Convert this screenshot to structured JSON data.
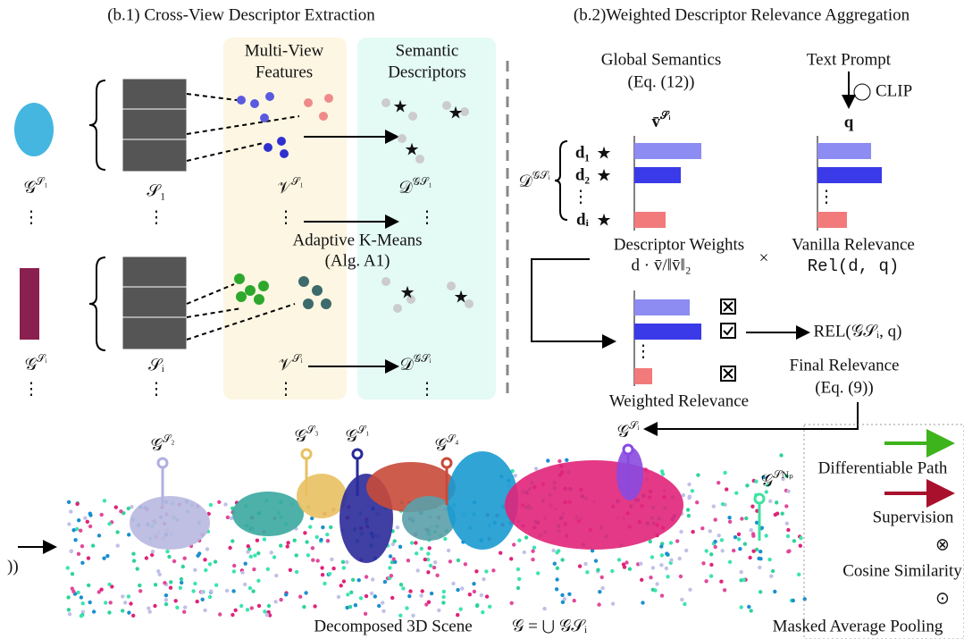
{
  "b1_title": "(b.1) Cross-View Descriptor Extraction",
  "b2_title": "(b.2)Weighted Descriptor Relevance Aggregation",
  "mv_features": [
    "Multi-View",
    "Features"
  ],
  "sem_desc": [
    "Semantic",
    "Descriptors"
  ],
  "ellipsis": "⋮",
  "star": "★",
  "left": {
    "g_s1": {
      "b": "𝒢",
      "s": "𝒮₁"
    },
    "s1": "𝒮₁",
    "v_s1": {
      "b": "𝒱",
      "s": "𝒮₁"
    },
    "d_s1": {
      "b": "𝒟",
      "s": "𝒢𝒮₁"
    },
    "g_si": {
      "b": "𝒢",
      "s": "𝒮ᵢ"
    },
    "si": "𝒮ᵢ",
    "v_si": {
      "b": "𝒱",
      "s": "𝒮ᵢ"
    },
    "d_si": {
      "b": "𝒟",
      "s": "𝒢𝒮ᵢ"
    }
  },
  "kmeans": [
    "Adaptive K-Means",
    "(Alg. A1)"
  ],
  "global_sem": [
    "Global Semantics",
    "(Eq. (12))"
  ],
  "text_prompt": "Text Prompt",
  "clip": "CLIP",
  "v_bar": {
    "b": "v̄",
    "s": "𝒮ᵢ"
  },
  "q": "q",
  "d_set": {
    "b": "𝒟",
    "s": "𝒢𝒮ᵢ"
  },
  "d_items": [
    "d₁",
    "d₂",
    "dᵢ"
  ],
  "desc_weights": [
    "Descriptor Weights",
    "d · v̄/‖v̄‖₂"
  ],
  "times": "×",
  "vanilla": [
    "Vanilla Relevance",
    "Rel(d, q)"
  ],
  "rel_out": "REL(𝒢𝒮ᵢ, q)",
  "final_rel": [
    "Final Relevance",
    "(Eq. (9))"
  ],
  "weighted_rel": "Weighted Relevance",
  "scene_labels": [
    {
      "b": "𝒢",
      "s": "𝒮₂"
    },
    {
      "b": "𝒢",
      "s": "𝒮₃"
    },
    {
      "b": "𝒢",
      "s": "𝒮₁"
    },
    {
      "b": "𝒢",
      "s": "𝒮₄"
    },
    {
      "b": "𝒢",
      "s": "𝒮ᵢ"
    },
    {
      "b": "𝒢",
      "s": "𝒮Nₚ"
    }
  ],
  "scene_caption": "Decomposed 3D Scene",
  "scene_formula": "𝒢 = ⋃ 𝒢𝒮ᵢ",
  "legend": {
    "diff": "Differentiable Path",
    "sup": "Supervision",
    "cos_sym": "⊗",
    "cos": "Cosine Similarity",
    "map_sym": "⊙",
    "map": "Masked Average Pooling"
  },
  "edge_text": "))"
}
